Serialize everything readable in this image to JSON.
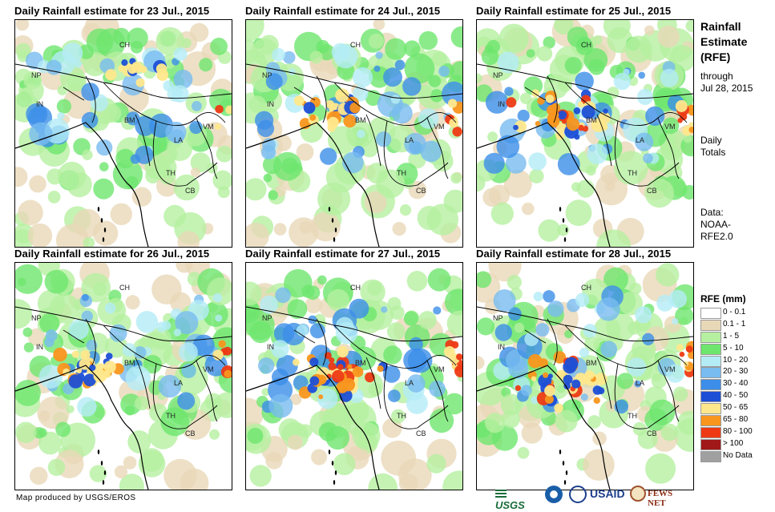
{
  "panels": [
    {
      "title": "Daily Rainfall estimate for 23 Jul., 2015",
      "intensity": 1
    },
    {
      "title": "Daily Rainfall estimate for 24 Jul., 2015",
      "intensity": 2
    },
    {
      "title": "Daily Rainfall estimate for 25 Jul., 2015",
      "intensity": 3
    },
    {
      "title": "Daily Rainfall estimate for 26 Jul., 2015",
      "intensity": 2
    },
    {
      "title": "Daily Rainfall estimate for 27 Jul., 2015",
      "intensity": 3
    },
    {
      "title": "Daily Rainfall estimate for 28 Jul., 2015",
      "intensity": 3
    }
  ],
  "country_labels": [
    "CH",
    "NP",
    "IN",
    "BM",
    "VM",
    "LA",
    "TH",
    "CB"
  ],
  "side": {
    "title_line1": "Rainfall",
    "title_line2": "Estimate",
    "title_line3": "(RFE)",
    "through": "through",
    "date": "Jul 28, 2015",
    "daily": "Daily",
    "totals": "Totals",
    "data_label": "Data:",
    "source1": "NOAA-",
    "source2": "RFE2.0"
  },
  "legend": {
    "title": "RFE (mm)",
    "items": [
      {
        "label": "0 - 0.1",
        "color": "#ffffff"
      },
      {
        "label": "0.1 - 1",
        "color": "#e8d8b8"
      },
      {
        "label": "1 - 5",
        "color": "#b5f0a0"
      },
      {
        "label": "5 - 10",
        "color": "#6ee66e"
      },
      {
        "label": "10 - 20",
        "color": "#b4ecf6"
      },
      {
        "label": "20 - 30",
        "color": "#78bcf0"
      },
      {
        "label": "30 - 40",
        "color": "#3c8ee8"
      },
      {
        "label": "40 - 50",
        "color": "#1c4fd6"
      },
      {
        "label": "50 - 65",
        "color": "#ffe88c"
      },
      {
        "label": "65 - 80",
        "color": "#f8961e"
      },
      {
        "label": "80 - 100",
        "color": "#ee3a14"
      },
      {
        "label": "> 100",
        "color": "#a01818"
      },
      {
        "label": "No Data",
        "color": "#a0a0a0"
      }
    ]
  },
  "footer": "Map produced by USGS/EROS",
  "logos": {
    "usgs": "USGS",
    "usaid": "USAID",
    "fews": "FEWS NET"
  }
}
